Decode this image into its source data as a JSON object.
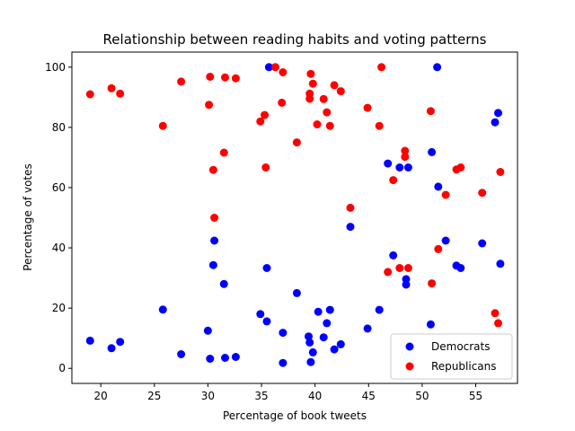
{
  "chart_data": {
    "type": "scatter",
    "title": "Relationship between reading habits and voting patterns",
    "xlabel": "Percentage of book tweets",
    "ylabel": "Percentage of votes",
    "xlim": [
      17.3,
      58.9
    ],
    "ylim": [
      -5,
      105
    ],
    "xticks": [
      20,
      25,
      30,
      35,
      40,
      45,
      50,
      55
    ],
    "yticks": [
      0,
      20,
      40,
      60,
      80,
      100
    ],
    "grid": false,
    "legend_position": "lower right",
    "series": [
      {
        "name": "Democrats",
        "color": "#0000ff",
        "points": [
          [
            19.0,
            9.2
          ],
          [
            21.0,
            6.7
          ],
          [
            21.8,
            8.8
          ],
          [
            25.8,
            19.5
          ],
          [
            27.5,
            4.7
          ],
          [
            30.0,
            12.5
          ],
          [
            30.2,
            3.2
          ],
          [
            30.5,
            34.3
          ],
          [
            30.6,
            42.4
          ],
          [
            31.5,
            28.0
          ],
          [
            31.6,
            3.5
          ],
          [
            32.6,
            3.8
          ],
          [
            34.9,
            18.0
          ],
          [
            35.5,
            15.6
          ],
          [
            35.5,
            33.3
          ],
          [
            35.7,
            100.0
          ],
          [
            37.0,
            1.8
          ],
          [
            37.0,
            11.8
          ],
          [
            38.3,
            25.0
          ],
          [
            39.4,
            10.6
          ],
          [
            39.5,
            8.6
          ],
          [
            39.6,
            2.1
          ],
          [
            39.8,
            5.3
          ],
          [
            40.3,
            18.8
          ],
          [
            40.8,
            10.3
          ],
          [
            41.1,
            15.0
          ],
          [
            41.4,
            19.4
          ],
          [
            41.8,
            6.3
          ],
          [
            42.4,
            8.0
          ],
          [
            43.3,
            47.0
          ],
          [
            44.9,
            13.2
          ],
          [
            46.0,
            19.4
          ],
          [
            46.8,
            68.0
          ],
          [
            47.3,
            37.5
          ],
          [
            47.9,
            66.7
          ],
          [
            48.5,
            27.8
          ],
          [
            48.5,
            29.6
          ],
          [
            48.7,
            66.7
          ],
          [
            50.8,
            14.6
          ],
          [
            50.9,
            71.8
          ],
          [
            51.4,
            100.0
          ],
          [
            51.5,
            60.3
          ],
          [
            52.2,
            42.4
          ],
          [
            53.2,
            34.1
          ],
          [
            53.6,
            33.3
          ],
          [
            55.6,
            41.5
          ],
          [
            56.8,
            81.7
          ],
          [
            57.1,
            84.8
          ],
          [
            57.3,
            34.7
          ]
        ]
      },
      {
        "name": "Republicans",
        "color": "#ff0000",
        "points": [
          [
            19.0,
            91.0
          ],
          [
            21.0,
            93.0
          ],
          [
            21.8,
            91.2
          ],
          [
            25.8,
            80.5
          ],
          [
            27.5,
            95.2
          ],
          [
            30.1,
            87.5
          ],
          [
            30.2,
            96.8
          ],
          [
            30.5,
            65.9
          ],
          [
            30.6,
            50.0
          ],
          [
            31.5,
            71.6
          ],
          [
            31.6,
            96.6
          ],
          [
            32.6,
            96.3
          ],
          [
            34.9,
            82.0
          ],
          [
            35.3,
            84.1
          ],
          [
            35.4,
            66.7
          ],
          [
            36.3,
            100.0
          ],
          [
            36.9,
            88.2
          ],
          [
            37.0,
            98.3
          ],
          [
            38.3,
            75.0
          ],
          [
            39.5,
            91.2
          ],
          [
            39.5,
            89.5
          ],
          [
            39.6,
            97.8
          ],
          [
            39.8,
            94.5
          ],
          [
            40.2,
            81.0
          ],
          [
            40.8,
            89.4
          ],
          [
            41.1,
            85.0
          ],
          [
            41.4,
            80.5
          ],
          [
            41.8,
            94.0
          ],
          [
            42.4,
            92.0
          ],
          [
            43.3,
            53.3
          ],
          [
            44.9,
            86.5
          ],
          [
            46.0,
            80.5
          ],
          [
            46.2,
            100.0
          ],
          [
            46.8,
            32.0
          ],
          [
            47.3,
            62.5
          ],
          [
            47.9,
            33.3
          ],
          [
            48.4,
            72.2
          ],
          [
            48.4,
            70.2
          ],
          [
            48.7,
            33.3
          ],
          [
            50.8,
            85.4
          ],
          [
            50.9,
            28.2
          ],
          [
            51.5,
            39.6
          ],
          [
            52.2,
            57.6
          ],
          [
            53.2,
            66.0
          ],
          [
            53.6,
            66.7
          ],
          [
            55.6,
            58.3
          ],
          [
            56.8,
            18.3
          ],
          [
            57.1,
            15.0
          ],
          [
            57.3,
            65.2
          ]
        ]
      }
    ]
  }
}
